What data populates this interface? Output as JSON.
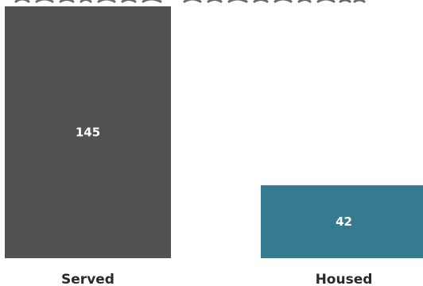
{
  "chart_data": {
    "type": "bar",
    "title": "",
    "xlabel": "",
    "ylabel": "",
    "categories": [
      "Served",
      "Housed"
    ],
    "values": [
      145,
      42
    ],
    "data_labels": [
      "145",
      "42"
    ],
    "ylim": [
      0,
      145
    ],
    "grid": false,
    "legend": "none",
    "colors": [
      "#525252",
      "#357a8e"
    ],
    "label_color": "#ffffff",
    "category_label_color": "#2a2a2a"
  }
}
